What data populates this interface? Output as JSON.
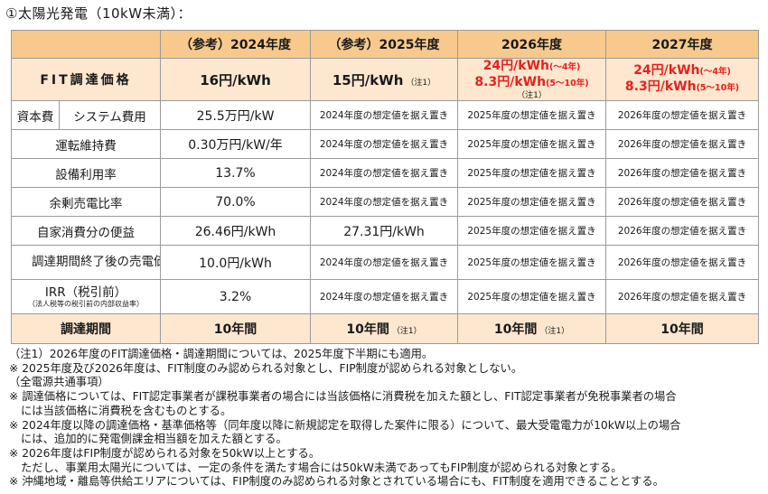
{
  "title": "①太陽光発電（10kW未満）：",
  "table": {
    "headers": [
      "",
      "（参考）2024年度",
      "（参考）2025年度",
      "2026年度",
      "2027年度"
    ],
    "fit": {
      "label": "FIT調達価格",
      "y2024": "16円/kWh",
      "y2025": "15円/kWh",
      "y2025_note": "（注1）",
      "y2026_line1": "24円/kWh",
      "y2026_line1_sub": "(～4年)",
      "y2026_line2": "8.3円/kWh",
      "y2026_line2_sub": "(5～10年)",
      "y2026_note": "（注1）",
      "y2027_line1": "24円/kWh",
      "y2027_line1_sub": "(～4年)",
      "y2027_line2": "8.3円/kWh",
      "y2027_line2_sub": "(5～10年)"
    },
    "rows": [
      {
        "label_a": "資本費",
        "label_b": "システム費用",
        "y2024": "25.5万円/kW",
        "y2025": "2024年度の想定値を据え置き",
        "y2026": "2025年度の想定値を据え置き",
        "y2027": "2026年度の想定値を据え置き"
      },
      {
        "label": "運転維持費",
        "y2024": "0.30万円/kW/年",
        "y2025": "2024年度の想定値を据え置き",
        "y2026": "2025年度の想定値を据え置き",
        "y2027": "2026年度の想定値を据え置き"
      },
      {
        "label": "設備利用率",
        "y2024": "13.7%",
        "y2025": "2024年度の想定値を据え置き",
        "y2026": "2025年度の想定値を据え置き",
        "y2027": "2026年度の想定値を据え置き"
      },
      {
        "label": "余剰売電比率",
        "y2024": "70.0%",
        "y2025": "2024年度の想定値を据え置き",
        "y2026": "2025年度の想定値を据え置き",
        "y2027": "2026年度の想定値を据え置き"
      },
      {
        "label": "自家消費分の便益",
        "y2024": "26.46円/kWh",
        "y2025": "27.31円/kWh",
        "y2026": "2025年度の想定値を据え置き",
        "y2027": "2026年度の想定値を据え置き"
      },
      {
        "label": "調達期間終了後の売電価格",
        "y2024": "10.0円/kWh",
        "y2025": "2024年度の想定値を据え置き",
        "y2026": "2025年度の想定値を据え置き",
        "y2027": "2026年度の想定値を据え置き"
      },
      {
        "label": "IRR（税引前）",
        "sublabel": "（法人税等の税引前の内部収益率）",
        "y2024": "3.2%",
        "y2025": "2024年度の想定値を据え置き",
        "y2026": "2025年度の想定値を据え置き",
        "y2027": "2026年度の想定値を据え置き"
      }
    ],
    "period": {
      "label": "調達期間",
      "y2024": "10年間",
      "y2025": "10年間",
      "y2025_note": "（注1）",
      "y2026": "10年間",
      "y2026_note": "（注1）",
      "y2027": "10年間"
    }
  },
  "notes": [
    "（注1）2026年度のFIT調達価格・調達期間については、2025年度下半期にも適用。",
    "※ 2025年度及び2026年度は、FIT制度のみ認められる対象とし、FIP制度が認められる対象としない。",
    "（全電源共通事項）",
    "※ 調達価格については、FIT認定事業者が課税事業者の場合には当該価格に消費税を加えた額とし、FIT認定事業者が免税事業者の場合",
    "には当該価格に消費税を含むものとする。",
    "※ 2024年度以降の調達価格・基準価格等（同年度以降に新規認定を取得した案件に限る）について、最大受電電力が10kW以上の場合",
    "には、追加的に発電側課金相当額を加えた額とする。",
    "※ 2026年度はFIP制度が認められる対象を50kW以上とする。",
    "ただし、事業用太陽光については、一定の条件を満たす場合には50kW未満であってもFIP制度が認められる対象とする。",
    "※ 沖縄地域・離島等供給エリアについては、FIP制度のみ認められる対象とされている場合にも、FIT制度を適用できることとする。"
  ],
  "colors": {
    "header_bg": "#f7c98d",
    "highlight_row_bg": "#fde7cf",
    "red_text": "#e8201c",
    "border": "#9a9a9a"
  }
}
